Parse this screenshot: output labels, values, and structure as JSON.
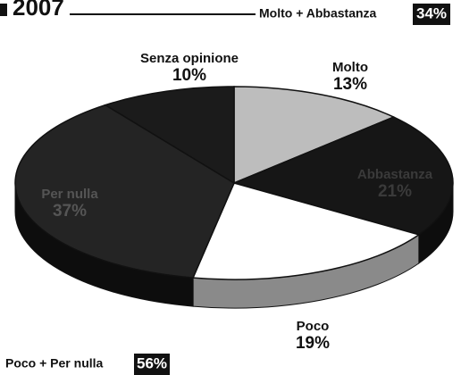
{
  "chart_data": {
    "type": "pie",
    "title": "2007",
    "categories": [
      "Molto",
      "Abbastanza",
      "Poco",
      "Per nulla",
      "Senza opinione"
    ],
    "values": [
      13,
      21,
      19,
      37,
      10
    ],
    "value_labels": [
      "13%",
      "21%",
      "19%",
      "37%",
      "10%"
    ],
    "colors": [
      "#bdbdbd",
      "#161616",
      "#ffffff",
      "#242424",
      "#1b1b1b"
    ],
    "annotations": [
      {
        "text": "Molto + Abbastanza",
        "value_label": "34%"
      },
      {
        "text": "Poco + Per nulla",
        "value_label": "56%"
      }
    ]
  }
}
